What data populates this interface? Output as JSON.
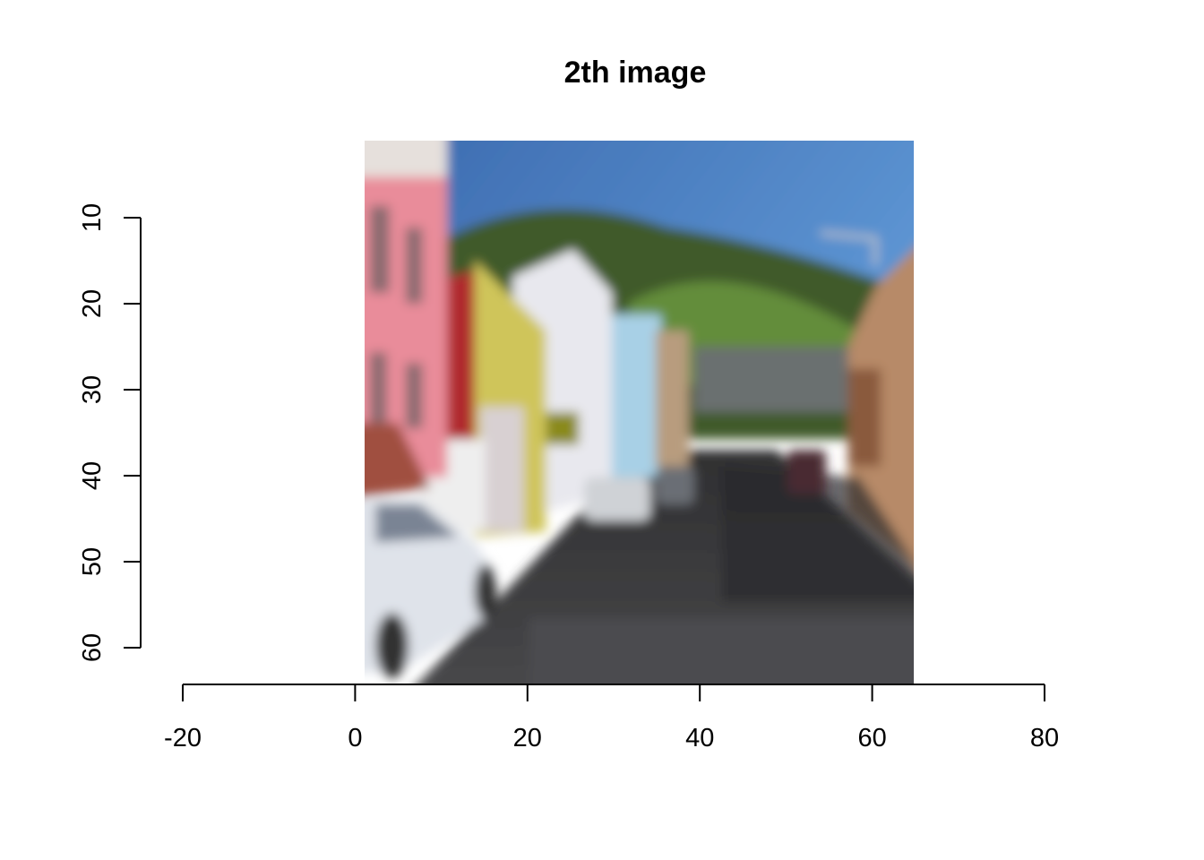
{
  "chart_data": {
    "type": "image",
    "title": "2th image",
    "xlabel": "",
    "ylabel": "",
    "x_axis": {
      "ticks": [
        -20,
        0,
        20,
        40,
        60,
        80
      ],
      "range": [
        -20,
        80
      ]
    },
    "y_axis": {
      "ticks": [
        10,
        20,
        30,
        40,
        50,
        60
      ],
      "range": [
        10,
        60
      ],
      "reversed": true
    },
    "image_extent": {
      "x": [
        1,
        64
      ],
      "y": [
        1,
        64
      ]
    },
    "grid": false,
    "legend": "none",
    "image_colors": {
      "sky_top": "#3f6fb5",
      "sky_bottom": "#5b91d0",
      "hill": "#3f5a2a",
      "hill_light": "#6e9a3e",
      "pink_house": "#e98c9a",
      "red_house": "#b02a2e",
      "yellow_house": "#cfc55a",
      "white_house": "#e8e8ee",
      "road": "#3b3b3d",
      "car": "#dfe3ea"
    }
  }
}
